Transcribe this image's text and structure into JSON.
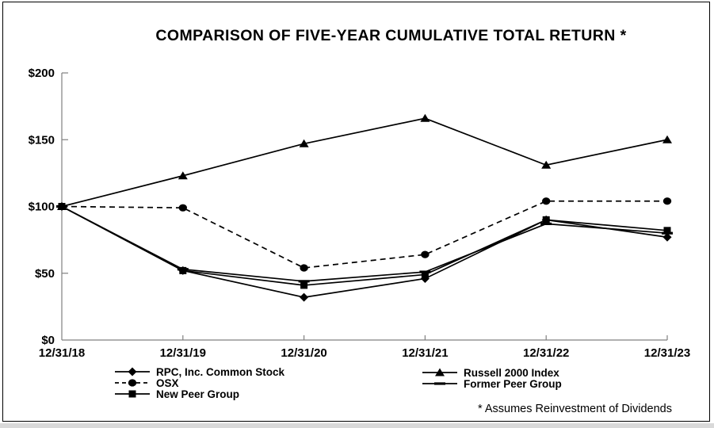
{
  "chart_data": {
    "type": "line",
    "title": "COMPARISON OF FIVE-YEAR CUMULATIVE TOTAL RETURN *",
    "footnote": "* Assumes Reinvestment of Dividends",
    "categories": [
      "12/31/18",
      "12/31/19",
      "12/31/20",
      "12/31/21",
      "12/31/22",
      "12/31/23"
    ],
    "series": [
      {
        "name": "RPC, Inc. Common Stock",
        "marker": "diamond",
        "line": "solid",
        "values": [
          100,
          52,
          32,
          46,
          90,
          77
        ]
      },
      {
        "name": "OSX",
        "marker": "circle",
        "line": "dashed",
        "values": [
          100,
          99,
          54,
          64,
          104,
          104
        ]
      },
      {
        "name": "New Peer Group",
        "marker": "square",
        "line": "solid",
        "values": [
          100,
          52,
          41,
          49,
          90,
          82
        ]
      },
      {
        "name": "Russell 2000 Index",
        "marker": "triangle",
        "line": "solid",
        "values": [
          100,
          123,
          147,
          166,
          131,
          150
        ]
      },
      {
        "name": "Former Peer Group",
        "marker": "dash",
        "line": "solid",
        "values": [
          100,
          53,
          44,
          51,
          87,
          80
        ]
      }
    ],
    "y_ticks": [
      {
        "value": 0,
        "label": "$0"
      },
      {
        "value": 50,
        "label": "$50"
      },
      {
        "value": 100,
        "label": "$100"
      },
      {
        "value": 150,
        "label": "$150"
      },
      {
        "value": 200,
        "label": "$200"
      }
    ],
    "ylim": [
      0,
      200
    ],
    "xlabel": "",
    "ylabel": "",
    "grid": false,
    "legend_position": "bottom",
    "legend_columns": [
      [
        0,
        1,
        2
      ],
      [
        3,
        4
      ]
    ],
    "colors": {
      "series": "#000000",
      "axis": "#808080",
      "text": "#000000"
    }
  }
}
